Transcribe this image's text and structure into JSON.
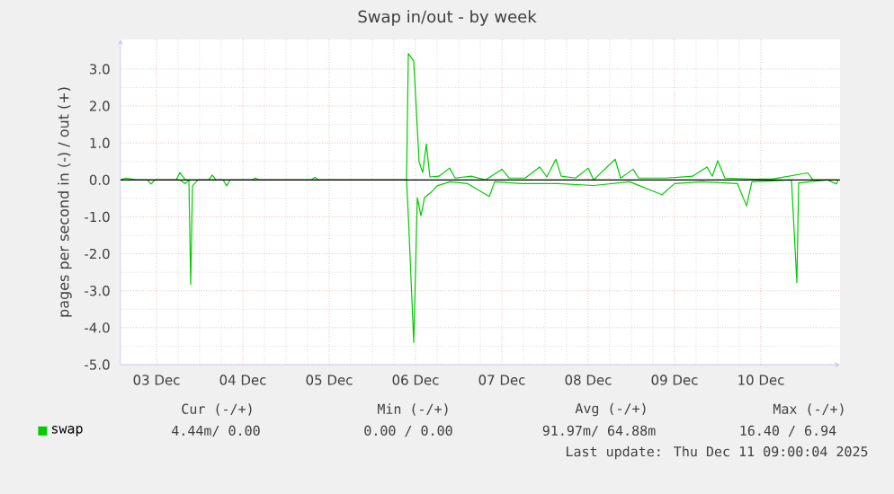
{
  "chart_data": {
    "type": "line",
    "title": "Swap in/out - by week",
    "ylabel": "pages per second in (-) / out (+)",
    "x": [
      "2025-12-03T02:00",
      "2025-12-03T03:30",
      "2025-12-03T06:30",
      "2025-12-03T17:30",
      "2025-12-03T18:30",
      "2025-12-03T20:00",
      "2025-12-04T02:30",
      "2025-12-04T03:30",
      "2025-12-04T04:30",
      "2025-12-04T14:30",
      "2025-12-04T15:30",
      "2025-12-04T16:30",
      "2025-12-05T07:00",
      "2025-12-05T08:00",
      "2025-12-05T09:00",
      "2025-12-06T09:30",
      "2025-12-06T10:00",
      "2025-12-06T11:30",
      "2025-12-06T13:00",
      "2025-12-06T14:00",
      "2025-12-06T15:00",
      "2025-12-06T16:00",
      "2025-12-06T18:30",
      "2025-12-06T21:30",
      "2025-12-06T23:00",
      "2025-12-07T03:30",
      "2025-12-07T07:30",
      "2025-12-07T12:00",
      "2025-12-07T14:00",
      "2025-12-07T18:30",
      "2025-12-07T22:30",
      "2025-12-08T00:30",
      "2025-12-08T03:00",
      "2025-12-08T04:30",
      "2025-12-08T08:30",
      "2025-12-08T12:00",
      "2025-12-08T13:30",
      "2025-12-08T19:30",
      "2025-12-08T21:00",
      "2025-12-09T00:30",
      "2025-12-09T02:00",
      "2025-12-09T09:30",
      "2025-12-09T17:00",
      "2025-12-09T21:00",
      "2025-12-09T22:30",
      "2025-12-10T00:00",
      "2025-12-10T02:00",
      "2025-12-10T10:30",
      "2025-12-10T15:30",
      "2025-12-11T01:00",
      "2025-12-11T02:30",
      "2025-12-11T09:30"
    ],
    "series": [
      {
        "name": "swap",
        "color": "#00cc00",
        "values": [
          0,
          0.05,
          0,
          0,
          0.2,
          0,
          0,
          0.13,
          0,
          0,
          0.05,
          0,
          0,
          0.07,
          0,
          0,
          3.42,
          3.22,
          0.48,
          0.2,
          0.97,
          0.08,
          0.1,
          0.32,
          0.05,
          0.1,
          0,
          0.29,
          0.05,
          0.05,
          0.35,
          0.08,
          0.56,
          0.1,
          0.05,
          0.32,
          0,
          0.56,
          0.05,
          0.29,
          0.05,
          0.05,
          0.1,
          0.35,
          0.1,
          0.52,
          0.05,
          0.02,
          0.03,
          0.19,
          0,
          0
        ]
      },
      {
        "color": "#00cc00",
        "x": [
          "2025-12-03T02:00",
          "2025-12-03T09:30",
          "2025-12-03T10:30",
          "2025-12-03T11:30",
          "2025-12-03T18:30",
          "2025-12-03T20:00",
          "2025-12-03T21:00",
          "2025-12-03T21:30",
          "2025-12-03T22:00",
          "2025-12-03T23:30",
          "2025-12-04T06:30",
          "2025-12-04T07:30",
          "2025-12-04T08:30",
          "2025-12-06T09:30",
          "2025-12-06T10:00",
          "2025-12-06T11:30",
          "2025-12-06T12:30",
          "2025-12-06T13:30",
          "2025-12-06T14:30",
          "2025-12-06T16:30",
          "2025-12-06T18:00",
          "2025-12-06T21:30",
          "2025-12-07T02:30",
          "2025-12-07T08:30",
          "2025-12-07T10:00",
          "2025-12-07T17:30",
          "2025-12-08T03:30",
          "2025-12-08T13:30",
          "2025-12-08T23:30",
          "2025-12-09T08:30",
          "2025-12-09T12:00",
          "2025-12-09T19:30",
          "2025-12-10T05:30",
          "2025-12-10T08:00",
          "2025-12-10T09:30",
          "2025-12-10T20:30",
          "2025-12-10T22:00",
          "2025-12-10T22:30",
          "2025-12-11T06:30",
          "2025-12-11T09:00",
          "2025-12-11T09:30"
        ],
        "values": [
          0,
          0,
          -0.11,
          0,
          0,
          -0.1,
          0,
          -2.83,
          -0.16,
          0,
          0,
          -0.16,
          0,
          0,
          -0.97,
          -4.4,
          -0.48,
          -0.97,
          -0.48,
          -0.32,
          -0.16,
          -0.05,
          -0.1,
          -0.45,
          -0.05,
          -0.1,
          -0.1,
          -0.15,
          -0.05,
          -0.4,
          -0.1,
          -0.05,
          -0.1,
          -0.7,
          -0.05,
          0,
          -2.78,
          -0.08,
          0,
          -0.11,
          0
        ]
      }
    ],
    "xlim": [
      "2025-12-03T02:00",
      "2025-12-11T10:00"
    ],
    "xticks": [
      {
        "value": "2025-12-03T12:00",
        "label": "03 Dec"
      },
      {
        "value": "2025-12-04T12:00",
        "label": "04 Dec"
      },
      {
        "value": "2025-12-05T12:00",
        "label": "05 Dec"
      },
      {
        "value": "2025-12-06T12:00",
        "label": "06 Dec"
      },
      {
        "value": "2025-12-07T12:00",
        "label": "07 Dec"
      },
      {
        "value": "2025-12-08T12:00",
        "label": "08 Dec"
      },
      {
        "value": "2025-12-09T12:00",
        "label": "09 Dec"
      },
      {
        "value": "2025-12-10T12:00",
        "label": "10 Dec"
      }
    ],
    "ylim": [
      -5,
      3.8
    ],
    "yticks": [
      {
        "value": 3,
        "label": "3.0"
      },
      {
        "value": 2,
        "label": "2.0"
      },
      {
        "value": 1,
        "label": "1.0"
      },
      {
        "value": 0,
        "label": "0.0"
      },
      {
        "value": -1,
        "label": "-1.0"
      },
      {
        "value": -2,
        "label": "-2.0"
      },
      {
        "value": -3,
        "label": "-3.0"
      },
      {
        "value": -4,
        "label": "-4.0"
      },
      {
        "value": -5,
        "label": "-5.0"
      }
    ],
    "ref_lines": [
      {
        "axis": "y",
        "value": 0,
        "color": "#000000"
      }
    ],
    "grid": true,
    "legend": "bottom",
    "marker": "none",
    "line_style": "solid",
    "annotations": [
      "Cur (-/+)",
      "Min (-/+)",
      "Avg (-/+)",
      "Max (-/+)",
      "4.44m/ 0.00",
      "0.00 / 0.00",
      "91.97m/ 64.88m",
      "16.40 / 6.94",
      "Last update: Thu Dec 11 09:00:04 2025"
    ]
  }
}
